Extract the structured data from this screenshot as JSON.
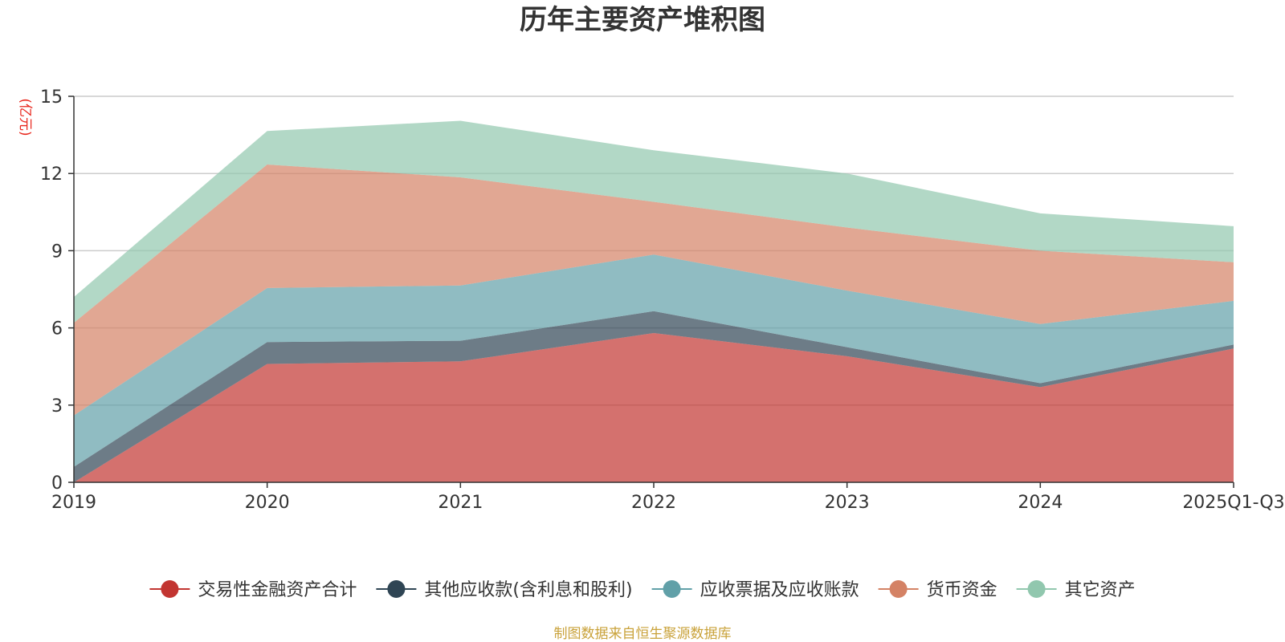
{
  "chart_data": {
    "type": "area",
    "stacked": true,
    "title": "历年主要资产堆积图",
    "ylabel": "(亿元)",
    "xlabel": "",
    "categories": [
      "2019",
      "2020",
      "2021",
      "2022",
      "2023",
      "2024",
      "2025Q1-Q3"
    ],
    "ylim": [
      0,
      15
    ],
    "yticks": [
      "0",
      "3",
      "6",
      "9",
      "12",
      "15"
    ],
    "ytick_values": [
      0,
      3,
      6,
      9,
      12,
      15
    ],
    "grid": true,
    "legend_position": "bottom",
    "series": [
      {
        "name": "交易性金融资产合计",
        "color": "#c23531",
        "values": [
          0.0,
          4.6,
          4.7,
          5.8,
          4.9,
          3.7,
          5.2
        ]
      },
      {
        "name": "其他应收款(含利息和股利)",
        "color": "#2f4554",
        "values": [
          0.6,
          0.85,
          0.8,
          0.85,
          0.35,
          0.15,
          0.15
        ]
      },
      {
        "name": "应收票据及应收账款",
        "color": "#61a0a8",
        "values": [
          2.0,
          2.1,
          2.15,
          2.2,
          2.2,
          2.3,
          1.7
        ]
      },
      {
        "name": "货币资金",
        "color": "#d48265",
        "values": [
          3.6,
          4.8,
          4.2,
          2.05,
          2.45,
          2.85,
          1.5
        ]
      },
      {
        "name": "其它资产",
        "color": "#91c7ae",
        "values": [
          1.0,
          1.3,
          2.2,
          2.0,
          2.1,
          1.45,
          1.4
        ]
      }
    ],
    "source": "制图数据来自恒生聚源数据库",
    "colors": {
      "title": "#333333",
      "unit": "#e8261c",
      "axis": "#333333",
      "grid": "#cccccc",
      "source": "#c9a23a"
    }
  }
}
